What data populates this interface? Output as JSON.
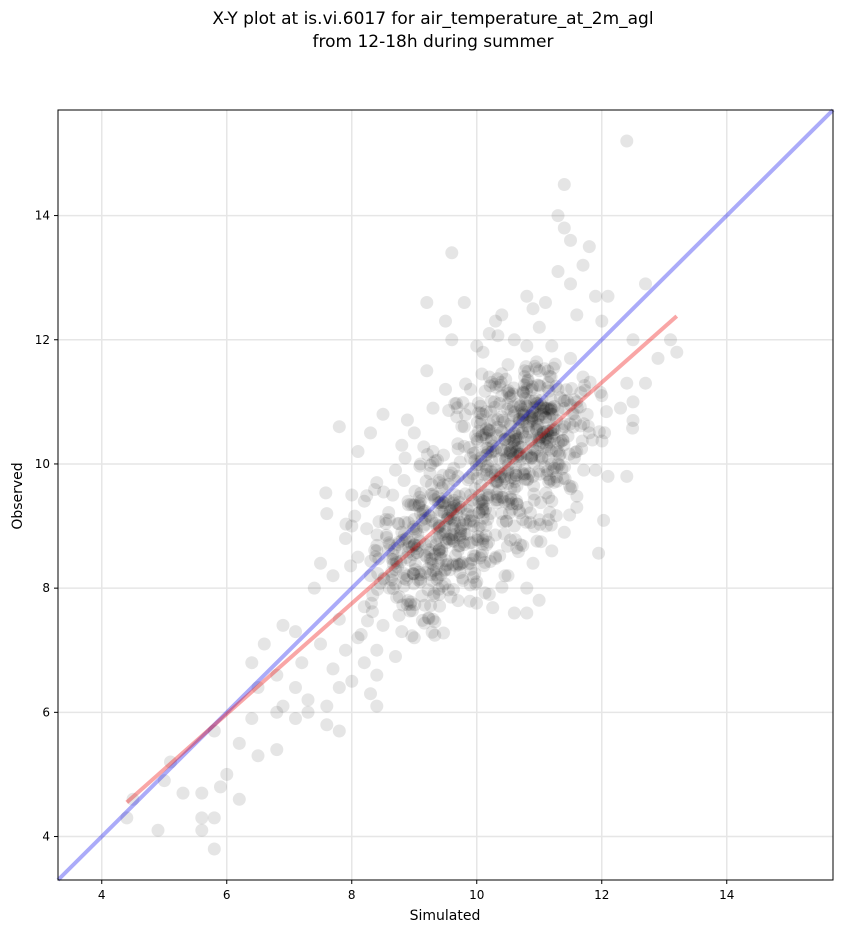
{
  "chart_data": {
    "type": "scatter",
    "title_lines": [
      "X-Y plot at is.vi.6017 for air_temperature_at_2m_agl",
      "from 12-18h during summer"
    ],
    "xlabel": "Simulated",
    "ylabel": "Observed",
    "xlim": [
      3.3,
      15.7
    ],
    "ylim": [
      3.3,
      15.7
    ],
    "xticks": [
      4,
      6,
      8,
      10,
      12,
      14
    ],
    "yticks": [
      4,
      6,
      8,
      10,
      12,
      14
    ],
    "grid": true,
    "point_color": "#000000",
    "point_alpha": 0.1,
    "points": [
      [
        12.4,
        15.2
      ],
      [
        11.4,
        14.5
      ],
      [
        11.3,
        14.0
      ],
      [
        11.4,
        13.8
      ],
      [
        11.5,
        13.6
      ],
      [
        11.8,
        13.5
      ],
      [
        9.6,
        13.4
      ],
      [
        11.7,
        13.2
      ],
      [
        11.3,
        13.1
      ],
      [
        11.5,
        12.9
      ],
      [
        12.7,
        12.9
      ],
      [
        10.8,
        12.7
      ],
      [
        11.9,
        12.7
      ],
      [
        12.1,
        12.7
      ],
      [
        9.2,
        12.6
      ],
      [
        9.8,
        12.6
      ],
      [
        11.1,
        12.6
      ],
      [
        10.9,
        12.5
      ],
      [
        10.4,
        12.4
      ],
      [
        11.6,
        12.4
      ],
      [
        10.3,
        12.3
      ],
      [
        9.5,
        12.3
      ],
      [
        12.0,
        12.3
      ],
      [
        11.0,
        12.2
      ],
      [
        10.2,
        12.1
      ],
      [
        10.6,
        12.0
      ],
      [
        9.6,
        12.0
      ],
      [
        12.5,
        12.0
      ],
      [
        13.1,
        12.0
      ],
      [
        10.0,
        11.9
      ],
      [
        10.8,
        11.9
      ],
      [
        11.2,
        11.9
      ],
      [
        10.1,
        11.8
      ],
      [
        13.2,
        11.8
      ],
      [
        11.5,
        11.7
      ],
      [
        12.9,
        11.7
      ],
      [
        10.5,
        11.6
      ],
      [
        11.0,
        11.5
      ],
      [
        9.2,
        11.5
      ],
      [
        10.2,
        11.4
      ],
      [
        11.7,
        11.4
      ],
      [
        12.4,
        11.3
      ],
      [
        12.7,
        11.3
      ],
      [
        10.8,
        11.3
      ],
      [
        9.9,
        11.2
      ],
      [
        11.3,
        11.2
      ],
      [
        9.5,
        11.2
      ],
      [
        10.4,
        11.1
      ],
      [
        12.0,
        11.1
      ],
      [
        11.6,
        11.0
      ],
      [
        12.5,
        11.0
      ],
      [
        10.9,
        10.9
      ],
      [
        12.3,
        10.9
      ],
      [
        9.3,
        10.9
      ],
      [
        10.1,
        10.8
      ],
      [
        11.2,
        10.8
      ],
      [
        8.5,
        10.8
      ],
      [
        7.8,
        10.6
      ],
      [
        9.8,
        10.6
      ],
      [
        11.4,
        10.6
      ],
      [
        12.5,
        10.7
      ],
      [
        9.0,
        10.5
      ],
      [
        10.6,
        10.5
      ],
      [
        11.8,
        10.5
      ],
      [
        8.3,
        10.5
      ],
      [
        10.0,
        10.4
      ],
      [
        11.1,
        10.4
      ],
      [
        8.8,
        10.3
      ],
      [
        10.5,
        10.3
      ],
      [
        9.3,
        10.2
      ],
      [
        11.6,
        10.2
      ],
      [
        8.1,
        10.2
      ],
      [
        9.9,
        10.1
      ],
      [
        10.8,
        10.1
      ],
      [
        9.1,
        10.0
      ],
      [
        11.3,
        10.0
      ],
      [
        10.3,
        9.9
      ],
      [
        11.9,
        9.9
      ],
      [
        8.7,
        9.9
      ],
      [
        9.7,
        9.8
      ],
      [
        12.1,
        9.8
      ],
      [
        12.4,
        9.8
      ],
      [
        10.9,
        9.8
      ],
      [
        8.4,
        9.7
      ],
      [
        9.4,
        9.7
      ],
      [
        10.6,
        9.6
      ],
      [
        11.5,
        9.6
      ],
      [
        8.0,
        9.5
      ],
      [
        9.9,
        9.5
      ],
      [
        10.2,
        9.5
      ],
      [
        8.9,
        9.4
      ],
      [
        11.2,
        9.4
      ],
      [
        8.2,
        9.4
      ],
      [
        9.6,
        9.3
      ],
      [
        10.8,
        9.3
      ],
      [
        11.6,
        9.3
      ],
      [
        9.1,
        9.2
      ],
      [
        10.4,
        9.2
      ],
      [
        7.6,
        9.2
      ],
      [
        8.6,
        9.1
      ],
      [
        9.8,
        9.1
      ],
      [
        11.0,
        9.1
      ],
      [
        8.0,
        9.0
      ],
      [
        9.4,
        9.0
      ],
      [
        10.6,
        9.0
      ],
      [
        11.4,
        8.9
      ],
      [
        8.8,
        8.9
      ],
      [
        9.6,
        8.8
      ],
      [
        10.1,
        8.8
      ],
      [
        7.9,
        8.8
      ],
      [
        9.0,
        8.7
      ],
      [
        10.7,
        8.7
      ],
      [
        11.2,
        8.6
      ],
      [
        8.4,
        8.6
      ],
      [
        9.7,
        8.6
      ],
      [
        10.3,
        8.5
      ],
      [
        9.2,
        8.5
      ],
      [
        8.1,
        8.5
      ],
      [
        7.5,
        8.4
      ],
      [
        9.9,
        8.4
      ],
      [
        10.9,
        8.4
      ],
      [
        8.7,
        8.3
      ],
      [
        9.5,
        8.3
      ],
      [
        10.5,
        8.2
      ],
      [
        8.3,
        8.2
      ],
      [
        7.7,
        8.2
      ],
      [
        9.1,
        8.1
      ],
      [
        10.0,
        8.1
      ],
      [
        10.8,
        8.0
      ],
      [
        8.6,
        8.0
      ],
      [
        7.4,
        8.0
      ],
      [
        9.4,
        7.9
      ],
      [
        10.2,
        7.9
      ],
      [
        8.9,
        7.8
      ],
      [
        9.7,
        7.8
      ],
      [
        8.2,
        7.7
      ],
      [
        10.6,
        7.6
      ],
      [
        10.8,
        7.6
      ],
      [
        9.3,
        7.5
      ],
      [
        7.8,
        7.5
      ],
      [
        8.5,
        7.4
      ],
      [
        6.9,
        7.4
      ],
      [
        8.8,
        7.3
      ],
      [
        7.1,
        7.3
      ],
      [
        8.1,
        7.2
      ],
      [
        9.0,
        7.2
      ],
      [
        7.5,
        7.1
      ],
      [
        6.6,
        7.1
      ],
      [
        8.4,
        7.0
      ],
      [
        7.9,
        7.0
      ],
      [
        8.7,
        6.9
      ],
      [
        7.2,
        6.8
      ],
      [
        6.4,
        6.8
      ],
      [
        8.2,
        6.8
      ],
      [
        7.7,
        6.7
      ],
      [
        8.4,
        6.6
      ],
      [
        6.8,
        6.6
      ],
      [
        8.0,
        6.5
      ],
      [
        6.5,
        6.4
      ],
      [
        7.1,
        6.4
      ],
      [
        7.8,
        6.4
      ],
      [
        8.3,
        6.3
      ],
      [
        7.3,
        6.2
      ],
      [
        7.6,
        6.1
      ],
      [
        8.4,
        6.1
      ],
      [
        6.9,
        6.1
      ],
      [
        6.8,
        6.0
      ],
      [
        7.3,
        6.0
      ],
      [
        6.4,
        5.9
      ],
      [
        7.6,
        5.8
      ],
      [
        7.1,
        5.9
      ],
      [
        7.8,
        5.7
      ],
      [
        5.8,
        5.7
      ],
      [
        6.2,
        5.5
      ],
      [
        6.8,
        5.4
      ],
      [
        6.5,
        5.3
      ],
      [
        5.1,
        5.2
      ],
      [
        6.0,
        5.0
      ],
      [
        5.0,
        4.9
      ],
      [
        5.9,
        4.8
      ],
      [
        6.2,
        4.6
      ],
      [
        5.3,
        4.7
      ],
      [
        5.6,
        4.7
      ],
      [
        4.5,
        4.6
      ],
      [
        4.4,
        4.3
      ],
      [
        5.6,
        4.3
      ],
      [
        5.8,
        4.3
      ],
      [
        4.9,
        4.1
      ],
      [
        5.6,
        4.1
      ],
      [
        5.8,
        3.8
      ]
    ],
    "clusters": [
      {
        "center": [
          9.5,
          8.9
        ],
        "spread": [
          0.55,
          0.55
        ],
        "count": 260
      },
      {
        "center": [
          10.6,
          10.1
        ],
        "spread": [
          0.6,
          0.6
        ],
        "count": 320
      },
      {
        "center": [
          11.0,
          10.8
        ],
        "spread": [
          0.45,
          0.45
        ],
        "count": 140
      },
      {
        "center": [
          8.8,
          8.2
        ],
        "spread": [
          0.45,
          0.5
        ],
        "count": 80
      }
    ],
    "lines": [
      {
        "name": "",
        "kind": "identity",
        "color": "#0000ee",
        "alpha": 0.33,
        "points": [
          [
            3.3,
            3.3
          ],
          [
            15.7,
            15.7
          ]
        ]
      },
      {
        "name": "",
        "kind": "regression",
        "color": "#ee0000",
        "alpha": 0.35,
        "points": [
          [
            4.4,
            4.55
          ],
          [
            13.2,
            12.38
          ]
        ]
      }
    ]
  }
}
